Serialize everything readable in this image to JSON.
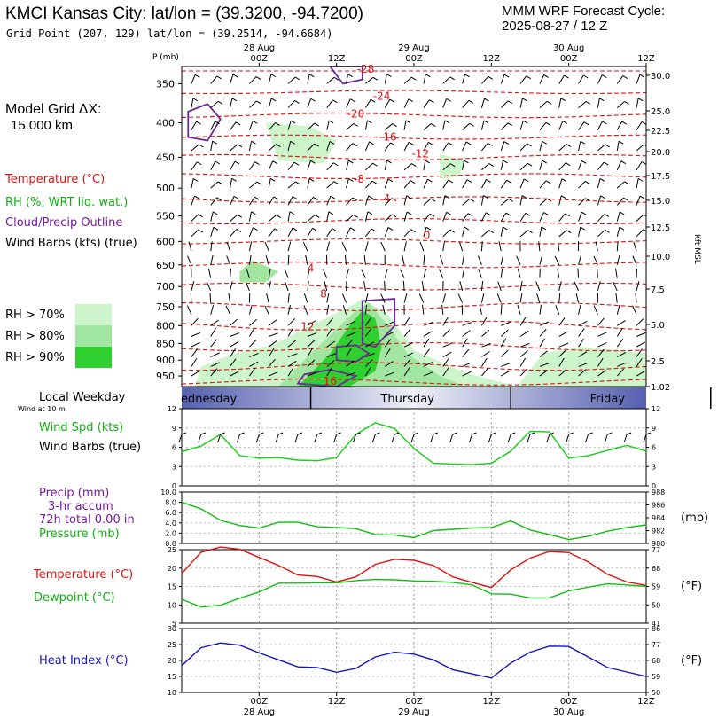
{
  "header": {
    "station_title": "KMCI Kansas City:  lat/lon = (39.3200, -94.7200)",
    "grid_point": "Grid Point (207, 129) lat/lon = (39.2514, -94.6684)",
    "cycle_line1": "MMM WRF Forecast Cycle:",
    "cycle_line2": "2025-08-27 / 12  Z"
  },
  "side_labels": {
    "model_grid": "Model Grid ΔX:",
    "grid_km": "15.000 km",
    "temperature": "Temperature (°C)",
    "rh": "RH (%, WRT liq. wat.)",
    "cloud": "Cloud/Precip Outline",
    "wind_barbs": "Wind Barbs (kts) (true)",
    "rh70": "RH > 70%",
    "rh80": "RH > 80%",
    "rh90": "RH > 90%",
    "local_weekday": "Local Weekday",
    "wind_at_10m": "Wind at 10 m",
    "wind_spd": "Wind Spd (kts)",
    "wind_barbs_true": "Wind Barbs (true)",
    "precip": "Precip (mm)",
    "precip_accum": "3-hr accum",
    "precip_total": "72h total 0.00 in",
    "pressure": "Pressure (mb)",
    "pressure_unit": "(mb)",
    "sfc_temperature": "Temperature (°C)",
    "dewpoint": "Dewpoint (°C)",
    "deg_f": "(°F)",
    "heat_index": "Heat Index (°C)",
    "deg_f2": "(°F)",
    "kft_msl": "Kft MSL"
  },
  "colors": {
    "temperature": "#e01010",
    "rh": "#10c010",
    "cloud": "#6a2a9a",
    "heat_index": "#1515c0",
    "rh70": "#ccf5cc",
    "rh80": "#a0e6a0",
    "rh90": "#30d030",
    "day_band": "#5560b0"
  },
  "chart_data": [
    {
      "type": "heatmap",
      "panel": "cross-section",
      "ylabel": "P (mb)",
      "y2label": "Kft MSL",
      "x_top_ticks": [
        {
          "hour": 12,
          "day": "28 Aug",
          "label": "00Z"
        },
        {
          "hour": 24,
          "day": "",
          "label": "12Z"
        },
        {
          "hour": 36,
          "day": "29 Aug",
          "label": "00Z"
        },
        {
          "hour": 48,
          "day": "",
          "label": "12Z"
        },
        {
          "hour": 60,
          "day": "30 Aug",
          "label": "00Z"
        },
        {
          "hour": 72,
          "day": "",
          "label": "12Z"
        }
      ],
      "pressure_levels": [
        350,
        400,
        450,
        500,
        550,
        600,
        650,
        700,
        750,
        800,
        850,
        900,
        950
      ],
      "height_ticks_kft": [
        "30.0",
        "25.0",
        "22.5",
        "20.0",
        "17.5",
        "15.0",
        "12.5",
        "10.0",
        "7.5",
        "5.0",
        "2.5",
        "1.02"
      ],
      "temperature_contour_labels": [
        {
          "value": "-28",
          "hour": 28.5,
          "p": 333
        },
        {
          "value": "-24",
          "hour": 31,
          "p": 365
        },
        {
          "value": "-20",
          "hour": 27,
          "p": 388
        },
        {
          "value": "-16",
          "hour": 32,
          "p": 420
        },
        {
          "value": "-12",
          "hour": 37,
          "p": 445
        },
        {
          "value": "-8",
          "hour": 27.5,
          "p": 485
        },
        {
          "value": "-4",
          "hour": 31.5,
          "p": 518
        },
        {
          "value": "0",
          "hour": 38,
          "p": 588
        },
        {
          "value": "4",
          "hour": 20,
          "p": 657
        },
        {
          "value": "8",
          "hour": 22,
          "p": 718
        },
        {
          "value": "12",
          "hour": 19.5,
          "p": 803
        },
        {
          "value": "16",
          "hour": 23,
          "p": 967
        }
      ]
    },
    {
      "type": "line",
      "panel": "wind",
      "ylim": [
        0,
        12
      ],
      "yticks": [
        0,
        3,
        6,
        9,
        12
      ],
      "series": [
        {
          "name": "Wind Spd (kts)",
          "x": [
            0,
            3,
            6,
            9,
            12,
            15,
            18,
            21,
            24,
            27,
            30,
            33,
            36,
            39,
            42,
            45,
            48,
            51,
            54,
            57,
            60,
            63,
            66,
            69,
            72
          ],
          "values": [
            5.3,
            6.2,
            8.0,
            4.7,
            4.3,
            4.4,
            4.0,
            3.9,
            4.4,
            8.0,
            9.8,
            8.9,
            5.8,
            3.5,
            3.4,
            3.3,
            3.5,
            5.4,
            8.5,
            8.4,
            4.3,
            4.7,
            5.5,
            6.3,
            5.4
          ]
        }
      ]
    },
    {
      "type": "line",
      "panel": "precip-pressure",
      "ylim": [
        0,
        10
      ],
      "yticks": [
        "0.0",
        "2.0",
        "4.0",
        "6.0",
        "8.0",
        "10.0"
      ],
      "y2ticks": [
        "980",
        "982",
        "984",
        "986",
        "988"
      ],
      "y2lim": [
        980,
        988
      ],
      "series": [
        {
          "name": "Pressure (mb)",
          "x": [
            0,
            3,
            6,
            9,
            12,
            15,
            18,
            21,
            24,
            27,
            30,
            33,
            36,
            39,
            42,
            45,
            48,
            51,
            54,
            57,
            60,
            63,
            66,
            69,
            72
          ],
          "values": [
            986.4,
            985.4,
            983.6,
            982.8,
            982.4,
            983.3,
            983.3,
            982.6,
            982.5,
            982.3,
            981.4,
            981.3,
            980.9,
            982.0,
            982.2,
            982.4,
            982.5,
            983.5,
            982.1,
            981.4,
            980.6,
            981.1,
            981.9,
            982.5,
            982.9
          ]
        }
      ]
    },
    {
      "type": "line",
      "panel": "temperature-dewpoint",
      "ylim": [
        5,
        25
      ],
      "yticks": [
        5,
        10,
        15,
        20,
        25
      ],
      "y2ticks": [
        41,
        50,
        59,
        68,
        77
      ],
      "series": [
        {
          "name": "Temperature (°C)",
          "x": [
            0,
            3,
            6,
            9,
            12,
            15,
            18,
            21,
            24,
            27,
            30,
            33,
            36,
            39,
            42,
            45,
            48,
            51,
            54,
            57,
            60,
            63,
            66,
            69,
            72
          ],
          "values": [
            18.5,
            24.3,
            25.7,
            25.1,
            22.9,
            20.7,
            18.1,
            17.7,
            16.2,
            17.6,
            21.0,
            22.4,
            22.1,
            20.7,
            17.6,
            16.1,
            14.7,
            19.5,
            22.7,
            24.5,
            24.2,
            21.7,
            18.3,
            16.2,
            15.3
          ]
        },
        {
          "name": "Dewpoint (°C)",
          "x": [
            0,
            3,
            6,
            9,
            12,
            15,
            18,
            21,
            24,
            27,
            30,
            33,
            36,
            39,
            42,
            45,
            48,
            51,
            54,
            57,
            60,
            63,
            66,
            69,
            72
          ],
          "values": [
            11.5,
            9.4,
            9.9,
            11.8,
            13.5,
            15.9,
            15.9,
            16.0,
            16.0,
            16.6,
            16.9,
            16.8,
            16.5,
            16.4,
            16.1,
            15.4,
            13.0,
            12.9,
            11.9,
            11.9,
            13.8,
            14.8,
            15.7,
            15.4,
            15.0
          ]
        }
      ]
    },
    {
      "type": "line",
      "panel": "heat-index",
      "ylim": [
        10,
        30
      ],
      "yticks": [
        10,
        15,
        20,
        25,
        30
      ],
      "y2ticks": [
        50,
        59,
        68,
        77,
        86
      ],
      "xticks": [
        {
          "hour": 12,
          "label": "00Z",
          "day": "28 Aug"
        },
        {
          "hour": 24,
          "label": "12Z",
          "day": ""
        },
        {
          "hour": 36,
          "label": "00Z",
          "day": "29 Aug"
        },
        {
          "hour": 48,
          "label": "12Z",
          "day": ""
        },
        {
          "hour": 60,
          "label": "00Z",
          "day": "30 Aug"
        },
        {
          "hour": 72,
          "label": "12Z",
          "day": ""
        }
      ],
      "series": [
        {
          "name": "Heat Index (°C)",
          "x": [
            0,
            3,
            6,
            9,
            12,
            15,
            18,
            21,
            24,
            27,
            30,
            33,
            36,
            39,
            42,
            45,
            48,
            51,
            54,
            57,
            60,
            63,
            66,
            69,
            72
          ],
          "values": [
            18.4,
            24.0,
            25.5,
            24.8,
            22.4,
            20.2,
            18.0,
            17.8,
            16.3,
            17.5,
            21.1,
            22.6,
            22.0,
            20.2,
            17.1,
            15.8,
            14.5,
            19.2,
            22.6,
            24.5,
            24.4,
            21.1,
            17.8,
            16.4,
            15.0
          ]
        }
      ]
    }
  ],
  "day_band": {
    "labels": [
      "ednesday",
      "Thursday",
      "Friday"
    ]
  }
}
